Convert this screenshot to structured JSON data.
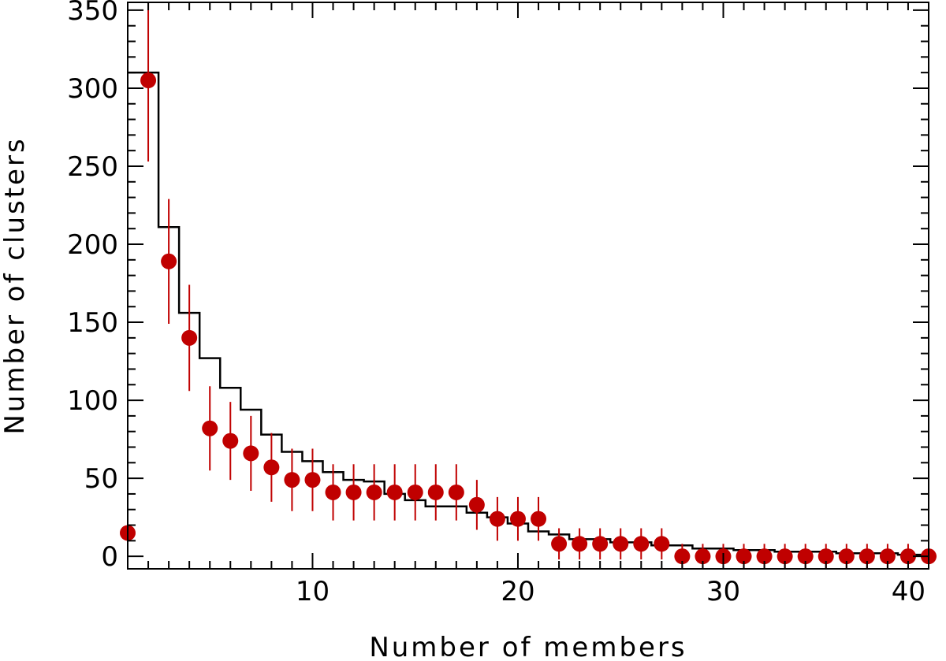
{
  "chart_data": {
    "type": "scatter",
    "title": "",
    "xlabel": "Number of members",
    "ylabel": "Number of clusters",
    "xlim": [
      1,
      40
    ],
    "ylim": [
      -8,
      355
    ],
    "x_ticks": [
      10,
      20,
      30,
      40
    ],
    "y_ticks": [
      0,
      50,
      100,
      150,
      200,
      250,
      300,
      350
    ],
    "grid": false,
    "legend": "none",
    "colors": {
      "points": "#c00000",
      "histogram": "#000000"
    },
    "series": [
      {
        "kind": "step",
        "x": [
          1,
          2,
          3,
          4,
          5,
          6,
          7,
          8,
          9,
          10,
          11,
          12,
          13,
          14,
          15,
          16,
          17,
          18,
          19,
          20,
          21,
          22,
          23,
          24,
          25,
          26,
          27,
          28,
          29,
          30,
          31,
          32,
          33,
          34,
          35,
          36,
          37,
          38,
          39,
          40
        ],
        "values": [
          310,
          310,
          211,
          156,
          127,
          108,
          94,
          78,
          67,
          61,
          54,
          49,
          48,
          40,
          36,
          32,
          32,
          28,
          25,
          21,
          16,
          14,
          11,
          11,
          9,
          9,
          7,
          7,
          5,
          5,
          4,
          4,
          3,
          3,
          3,
          2,
          2,
          2,
          1,
          1
        ]
      },
      {
        "kind": "points-with-errors",
        "x": [
          1,
          2,
          3,
          4,
          5,
          6,
          7,
          8,
          9,
          10,
          11,
          12,
          13,
          14,
          15,
          16,
          17,
          18,
          19,
          20,
          21,
          22,
          23,
          24,
          25,
          26,
          27,
          28,
          29,
          30,
          31,
          32,
          33,
          34,
          35,
          36,
          37,
          38,
          39,
          40
        ],
        "values": [
          15,
          305,
          189,
          140,
          82,
          74,
          66,
          57,
          49,
          49,
          41,
          41,
          41,
          41,
          41,
          41,
          41,
          33,
          24,
          24,
          24,
          8,
          8,
          8,
          8,
          8,
          8,
          0,
          0,
          0,
          0,
          0,
          0,
          0,
          0,
          0,
          0,
          0,
          0,
          0
        ],
        "errors": [
          15,
          52,
          40,
          34,
          27,
          25,
          24,
          22,
          20,
          20,
          18,
          18,
          18,
          18,
          18,
          18,
          18,
          16,
          14,
          14,
          14,
          10,
          10,
          10,
          10,
          10,
          10,
          8,
          8,
          8,
          8,
          8,
          8,
          8,
          8,
          8,
          8,
          8,
          8,
          8
        ]
      }
    ]
  }
}
